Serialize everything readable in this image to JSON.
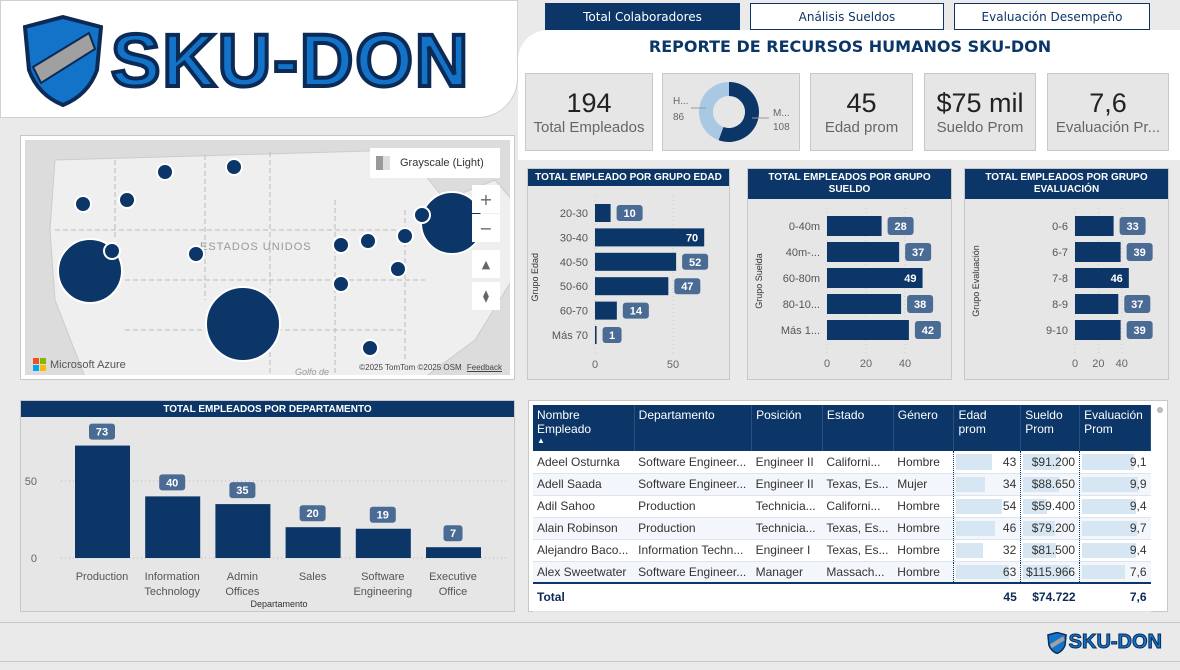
{
  "logo": {
    "text": "SKU-DON"
  },
  "tabs": [
    {
      "label": "Total Colaboradores",
      "active": true
    },
    {
      "label": "Análisis Sueldos",
      "active": false
    },
    {
      "label": "Evaluación Desempeño",
      "active": false
    }
  ],
  "title": "REPORTE DE RECURSOS HUMANOS SKU-DON",
  "kpis": {
    "total": {
      "value": "194",
      "label": "Total Empleados"
    },
    "edad": {
      "value": "45",
      "label": "Edad prom"
    },
    "sueldo": {
      "value": "$75 mil",
      "label": "Sueldo Prom"
    },
    "evaluacion": {
      "value": "7,6",
      "label": "Evaluación Pr..."
    }
  },
  "gender_donut": {
    "type": "pie",
    "slices": [
      {
        "label": "H...",
        "value": 86,
        "color": "#a9c8e4"
      },
      {
        "label": "M...",
        "value": 108,
        "color": "#0b3667"
      }
    ]
  },
  "map": {
    "style_label": "Grayscale (Light)",
    "country_label": "ESTADOS UNIDOS",
    "gulf_label": "Golfo de",
    "brand": "Microsoft Azure",
    "attribution": "©2025 TomTom  ©2025 OSM",
    "feedback": "Feedback"
  },
  "colors": {
    "primary": "#0b3667",
    "label_pill": "#4a6b94",
    "panel": "#e6e6e6"
  },
  "chart_data": [
    {
      "type": "bar",
      "orientation": "horizontal",
      "title": "TOTAL EMPLEADO POR GRUPO EDAD",
      "ylabel": "Grupo Edad",
      "categories": [
        "20-30",
        "30-40",
        "40-50",
        "50-60",
        "60-70",
        "Más 70"
      ],
      "values": [
        10,
        70,
        52,
        47,
        14,
        1
      ],
      "xticks": [
        "0",
        "50"
      ]
    },
    {
      "type": "bar",
      "orientation": "horizontal",
      "title": "TOTAL EMPLEADOS POR GRUPO SUELDO",
      "ylabel": "Grupo Suelda",
      "categories": [
        "0-40m",
        "40m-...",
        "60-80m",
        "80-10...",
        "Más 1..."
      ],
      "values": [
        28,
        37,
        49,
        38,
        42
      ],
      "xticks": [
        "0",
        "20",
        "40"
      ]
    },
    {
      "type": "bar",
      "orientation": "horizontal",
      "title": "TOTAL EMPLEADOS POR GRUPO EVALUACIÓN",
      "ylabel": "Grupo Evaluación",
      "categories": [
        "0-6",
        "6-7",
        "7-8",
        "8-9",
        "9-10"
      ],
      "values": [
        33,
        39,
        46,
        37,
        39
      ],
      "xticks": [
        "0",
        "20",
        "40"
      ]
    },
    {
      "type": "bar",
      "orientation": "vertical",
      "title": "TOTAL EMPLEADOS POR DEPARTAMENTO",
      "xlabel": "Departamento",
      "categories": [
        "Production",
        "Information Technology",
        "Admin Offices",
        "Sales",
        "Software Engineering",
        "Executive Office"
      ],
      "values": [
        73,
        40,
        35,
        20,
        19,
        7
      ],
      "yticks": [
        "0",
        "50"
      ],
      "grid": true
    }
  ],
  "table": {
    "headers": [
      "Nombre Empleado",
      "Departamento",
      "Posición",
      "Estado",
      "Género",
      "Edad prom",
      "Sueldo Prom",
      "Evaluación Prom"
    ],
    "rows": [
      [
        "Adeel Osturnka",
        "Software Engineer...",
        "Engineer II",
        "Californi...",
        "Hombre",
        "43",
        "$91.200",
        "9,1"
      ],
      [
        "Adell Saada",
        "Software Engineer...",
        "Engineer II",
        "Texas, Es...",
        "Mujer",
        "34",
        "$88.650",
        "9,9"
      ],
      [
        "Adil Sahoo",
        "Production",
        "Technicia...",
        "Californi...",
        "Hombre",
        "54",
        "$59.400",
        "9,4"
      ],
      [
        "Alain Robinson",
        "Production",
        "Technicia...",
        "Texas, Es...",
        "Hombre",
        "46",
        "$79.200",
        "9,7"
      ],
      [
        "Alejandro Baco...",
        "Information Techn...",
        "Engineer I",
        "Texas, Es...",
        "Hombre",
        "32",
        "$81.500",
        "9,4"
      ],
      [
        "Alex Sweetwater",
        "Software Engineer...",
        "Manager",
        "Massach...",
        "Hombre",
        "63",
        "$115.966",
        "7,6"
      ]
    ],
    "total": {
      "label": "Total",
      "edad": "45",
      "sueldo": "$74.722",
      "evaluacion": "7,6"
    }
  },
  "footer_logo": "SKU-DON"
}
